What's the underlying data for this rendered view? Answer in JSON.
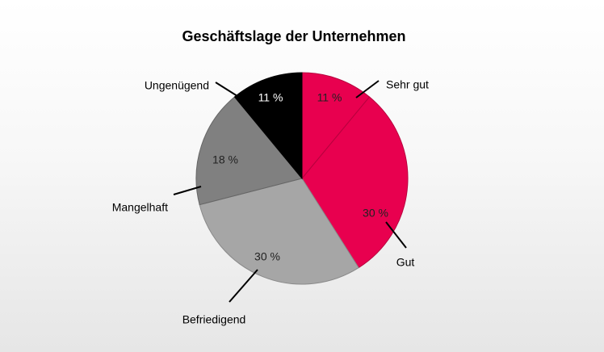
{
  "chart_data": {
    "type": "pie",
    "title": "Geschäftslage der Unternehmen",
    "slices": [
      {
        "key": "sehr-gut",
        "label": "Sehr gut",
        "value": 11,
        "value_label": "11 %",
        "color": "#e8004f",
        "slice_stroke": "#b8003e"
      },
      {
        "key": "gut",
        "label": "Gut",
        "value": 30,
        "value_label": "30 %",
        "color": "#e8004f",
        "slice_stroke": "#b8003e"
      },
      {
        "key": "befriedigend",
        "label": "Befriedigend",
        "value": 30,
        "value_label": "30 %",
        "color": "#a6a6a6",
        "slice_stroke": "#8a8a8a"
      },
      {
        "key": "mangelhaft",
        "label": "Mangelhaft",
        "value": 18,
        "value_label": "18 %",
        "color": "#808080",
        "slice_stroke": "#666666"
      },
      {
        "key": "ungenuegend",
        "label": "Ungenügend",
        "value": 11,
        "value_label": "11 %",
        "color": "#000000",
        "slice_stroke": "#000000"
      }
    ],
    "start_angle": "12 o'clock",
    "direction": "clockwise"
  }
}
